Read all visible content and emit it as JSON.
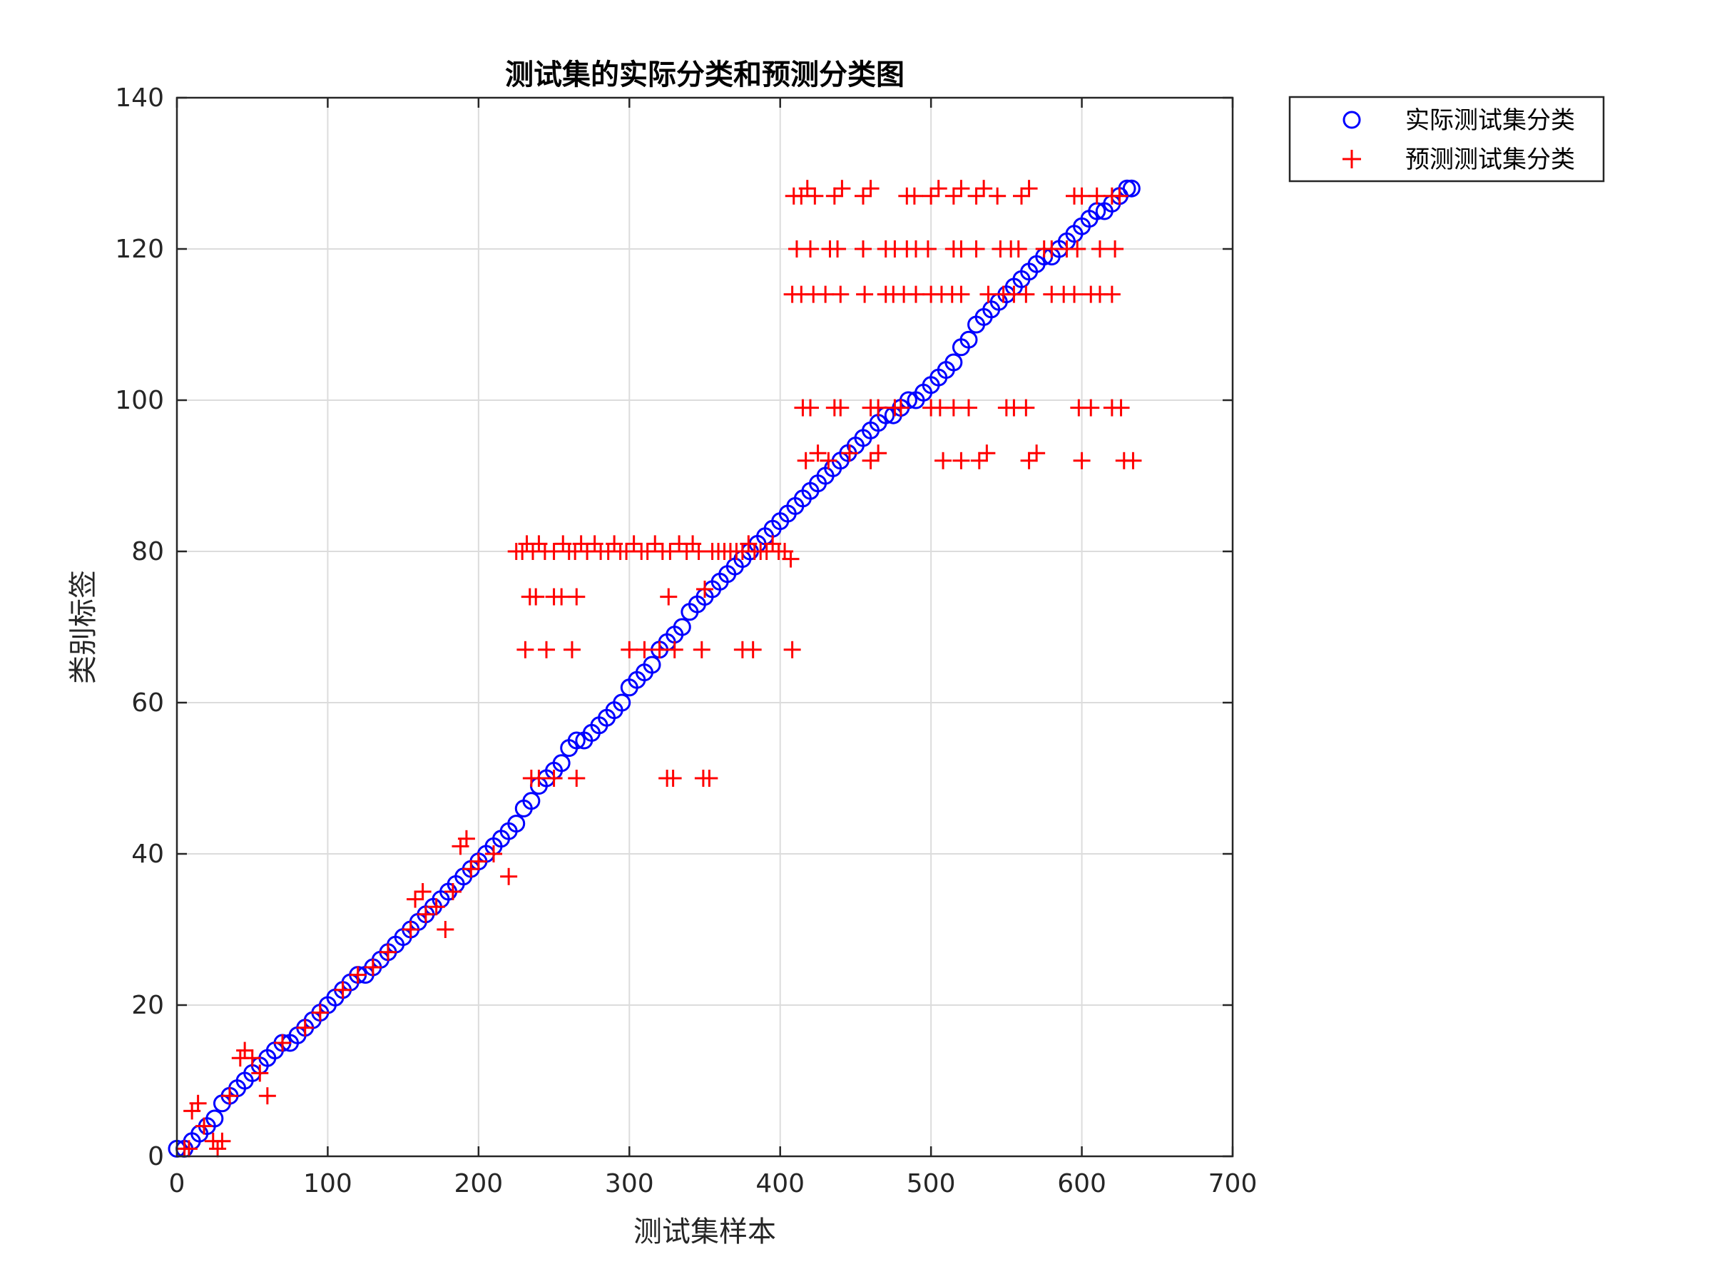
{
  "chart_data": {
    "type": "scatter",
    "title": "测试集的实际分类和预测分类图",
    "xlabel": "测试集样本",
    "ylabel": "类别标签",
    "xlim": [
      0,
      700
    ],
    "ylim": [
      0,
      140
    ],
    "xticks": [
      0,
      100,
      200,
      300,
      400,
      500,
      600,
      700
    ],
    "yticks": [
      0,
      20,
      40,
      60,
      80,
      100,
      120,
      140
    ],
    "grid": true,
    "legend_position": "outside-top-right",
    "series": [
      {
        "name": "实际测试集分类",
        "marker": "circle",
        "color": "#0000ff",
        "points": [
          [
            0,
            1
          ],
          [
            5,
            1
          ],
          [
            10,
            2
          ],
          [
            15,
            3
          ],
          [
            20,
            4
          ],
          [
            25,
            5
          ],
          [
            30,
            7
          ],
          [
            35,
            8
          ],
          [
            40,
            9
          ],
          [
            45,
            10
          ],
          [
            50,
            11
          ],
          [
            55,
            12
          ],
          [
            60,
            13
          ],
          [
            65,
            14
          ],
          [
            70,
            15
          ],
          [
            75,
            15
          ],
          [
            80,
            16
          ],
          [
            85,
            17
          ],
          [
            90,
            18
          ],
          [
            95,
            19
          ],
          [
            100,
            20
          ],
          [
            105,
            21
          ],
          [
            110,
            22
          ],
          [
            115,
            23
          ],
          [
            120,
            24
          ],
          [
            125,
            24
          ],
          [
            130,
            25
          ],
          [
            135,
            26
          ],
          [
            140,
            27
          ],
          [
            145,
            28
          ],
          [
            150,
            29
          ],
          [
            155,
            30
          ],
          [
            160,
            31
          ],
          [
            165,
            32
          ],
          [
            170,
            33
          ],
          [
            175,
            34
          ],
          [
            180,
            35
          ],
          [
            185,
            36
          ],
          [
            190,
            37
          ],
          [
            195,
            38
          ],
          [
            200,
            39
          ],
          [
            205,
            40
          ],
          [
            210,
            41
          ],
          [
            215,
            42
          ],
          [
            220,
            43
          ],
          [
            225,
            44
          ],
          [
            230,
            46
          ],
          [
            235,
            47
          ],
          [
            240,
            49
          ],
          [
            245,
            50
          ],
          [
            250,
            51
          ],
          [
            255,
            52
          ],
          [
            260,
            54
          ],
          [
            265,
            55
          ],
          [
            270,
            55
          ],
          [
            275,
            56
          ],
          [
            280,
            57
          ],
          [
            285,
            58
          ],
          [
            290,
            59
          ],
          [
            295,
            60
          ],
          [
            300,
            62
          ],
          [
            305,
            63
          ],
          [
            310,
            64
          ],
          [
            315,
            65
          ],
          [
            320,
            67
          ],
          [
            325,
            68
          ],
          [
            330,
            69
          ],
          [
            335,
            70
          ],
          [
            340,
            72
          ],
          [
            345,
            73
          ],
          [
            350,
            74
          ],
          [
            355,
            75
          ],
          [
            360,
            76
          ],
          [
            365,
            77
          ],
          [
            370,
            78
          ],
          [
            375,
            79
          ],
          [
            380,
            80
          ],
          [
            385,
            81
          ],
          [
            390,
            82
          ],
          [
            395,
            83
          ],
          [
            400,
            84
          ],
          [
            405,
            85
          ],
          [
            410,
            86
          ],
          [
            415,
            87
          ],
          [
            420,
            88
          ],
          [
            425,
            89
          ],
          [
            430,
            90
          ],
          [
            435,
            91
          ],
          [
            440,
            92
          ],
          [
            445,
            93
          ],
          [
            450,
            94
          ],
          [
            455,
            95
          ],
          [
            460,
            96
          ],
          [
            465,
            97
          ],
          [
            470,
            98
          ],
          [
            475,
            98
          ],
          [
            480,
            99
          ],
          [
            485,
            100
          ],
          [
            490,
            100
          ],
          [
            495,
            101
          ],
          [
            500,
            102
          ],
          [
            505,
            103
          ],
          [
            510,
            104
          ],
          [
            515,
            105
          ],
          [
            520,
            107
          ],
          [
            525,
            108
          ],
          [
            530,
            110
          ],
          [
            535,
            111
          ],
          [
            540,
            112
          ],
          [
            545,
            113
          ],
          [
            550,
            114
          ],
          [
            555,
            115
          ],
          [
            560,
            116
          ],
          [
            565,
            117
          ],
          [
            570,
            118
          ],
          [
            575,
            119
          ],
          [
            580,
            119
          ],
          [
            585,
            120
          ],
          [
            590,
            121
          ],
          [
            595,
            122
          ],
          [
            600,
            123
          ],
          [
            605,
            124
          ],
          [
            610,
            125
          ],
          [
            615,
            125
          ],
          [
            620,
            126
          ],
          [
            625,
            127
          ],
          [
            630,
            128
          ],
          [
            633,
            128
          ]
        ]
      },
      {
        "name": "预测测试集分类",
        "marker": "plus",
        "color": "#ff0000",
        "points": [
          [
            5,
            1
          ],
          [
            8,
            1
          ],
          [
            10,
            6
          ],
          [
            14,
            7
          ],
          [
            18,
            4
          ],
          [
            24,
            2
          ],
          [
            27,
            1
          ],
          [
            30,
            2
          ],
          [
            35,
            8
          ],
          [
            42,
            13
          ],
          [
            45,
            14
          ],
          [
            50,
            13
          ],
          [
            55,
            11
          ],
          [
            60,
            8
          ],
          [
            70,
            15
          ],
          [
            85,
            17
          ],
          [
            95,
            19
          ],
          [
            110,
            22
          ],
          [
            120,
            24
          ],
          [
            130,
            25
          ],
          [
            140,
            27
          ],
          [
            155,
            30
          ],
          [
            158,
            34
          ],
          [
            163,
            35
          ],
          [
            165,
            32
          ],
          [
            172,
            33
          ],
          [
            178,
            30
          ],
          [
            183,
            35
          ],
          [
            188,
            41
          ],
          [
            192,
            42
          ],
          [
            195,
            38
          ],
          [
            200,
            39
          ],
          [
            210,
            40
          ],
          [
            220,
            37
          ],
          [
            225,
            80
          ],
          [
            229,
            80
          ],
          [
            232,
            81
          ],
          [
            236,
            80
          ],
          [
            240,
            81
          ],
          [
            244,
            80
          ],
          [
            250,
            80
          ],
          [
            256,
            81
          ],
          [
            260,
            80
          ],
          [
            264,
            80
          ],
          [
            268,
            81
          ],
          [
            272,
            80
          ],
          [
            277,
            81
          ],
          [
            281,
            80
          ],
          [
            286,
            80
          ],
          [
            290,
            81
          ],
          [
            294,
            80
          ],
          [
            298,
            80
          ],
          [
            303,
            81
          ],
          [
            308,
            80
          ],
          [
            312,
            80
          ],
          [
            317,
            81
          ],
          [
            322,
            80
          ],
          [
            327,
            80
          ],
          [
            333,
            81
          ],
          [
            338,
            80
          ],
          [
            342,
            81
          ],
          [
            346,
            80
          ],
          [
            355,
            80
          ],
          [
            359,
            80
          ],
          [
            363,
            80
          ],
          [
            367,
            80
          ],
          [
            371,
            80
          ],
          [
            375,
            80
          ],
          [
            379,
            81
          ],
          [
            383,
            80
          ],
          [
            387,
            80
          ],
          [
            391,
            80
          ],
          [
            395,
            81
          ],
          [
            399,
            80
          ],
          [
            403,
            80
          ],
          [
            407,
            79
          ],
          [
            234,
            74
          ],
          [
            238,
            74
          ],
          [
            250,
            74
          ],
          [
            255,
            74
          ],
          [
            265,
            74
          ],
          [
            326,
            74
          ],
          [
            350,
            75
          ],
          [
            231,
            67
          ],
          [
            245,
            67
          ],
          [
            262,
            67
          ],
          [
            300,
            67
          ],
          [
            310,
            67
          ],
          [
            320,
            67
          ],
          [
            330,
            67
          ],
          [
            348,
            67
          ],
          [
            375,
            67
          ],
          [
            382,
            67
          ],
          [
            408,
            67
          ],
          [
            235,
            50
          ],
          [
            240,
            50
          ],
          [
            250,
            50
          ],
          [
            265,
            50
          ],
          [
            325,
            50
          ],
          [
            329,
            50
          ],
          [
            349,
            50
          ],
          [
            353,
            50
          ],
          [
            409,
            127
          ],
          [
            414,
            127
          ],
          [
            418,
            128
          ],
          [
            423,
            127
          ],
          [
            436,
            127
          ],
          [
            441,
            128
          ],
          [
            455,
            127
          ],
          [
            460,
            128
          ],
          [
            484,
            127
          ],
          [
            489,
            127
          ],
          [
            500,
            127
          ],
          [
            505,
            128
          ],
          [
            515,
            127
          ],
          [
            520,
            128
          ],
          [
            530,
            127
          ],
          [
            535,
            128
          ],
          [
            544,
            127
          ],
          [
            560,
            127
          ],
          [
            565,
            128
          ],
          [
            595,
            127
          ],
          [
            600,
            127
          ],
          [
            610,
            127
          ],
          [
            620,
            127
          ],
          [
            625,
            127
          ],
          [
            411,
            120
          ],
          [
            420,
            120
          ],
          [
            433,
            120
          ],
          [
            438,
            120
          ],
          [
            455,
            120
          ],
          [
            470,
            120
          ],
          [
            476,
            120
          ],
          [
            484,
            120
          ],
          [
            490,
            120
          ],
          [
            498,
            120
          ],
          [
            515,
            120
          ],
          [
            520,
            120
          ],
          [
            530,
            120
          ],
          [
            546,
            120
          ],
          [
            553,
            120
          ],
          [
            558,
            120
          ],
          [
            575,
            120
          ],
          [
            580,
            120
          ],
          [
            590,
            120
          ],
          [
            597,
            120
          ],
          [
            612,
            120
          ],
          [
            622,
            120
          ],
          [
            408,
            114
          ],
          [
            414,
            114
          ],
          [
            422,
            114
          ],
          [
            430,
            114
          ],
          [
            440,
            114
          ],
          [
            456,
            114
          ],
          [
            470,
            114
          ],
          [
            475,
            114
          ],
          [
            482,
            114
          ],
          [
            490,
            114
          ],
          [
            500,
            114
          ],
          [
            507,
            114
          ],
          [
            514,
            114
          ],
          [
            520,
            114
          ],
          [
            538,
            114
          ],
          [
            548,
            114
          ],
          [
            555,
            114
          ],
          [
            563,
            114
          ],
          [
            580,
            114
          ],
          [
            588,
            114
          ],
          [
            595,
            114
          ],
          [
            606,
            114
          ],
          [
            612,
            114
          ],
          [
            620,
            114
          ],
          [
            415,
            99
          ],
          [
            420,
            99
          ],
          [
            436,
            99
          ],
          [
            440,
            99
          ],
          [
            460,
            99
          ],
          [
            465,
            99
          ],
          [
            476,
            99
          ],
          [
            480,
            99
          ],
          [
            500,
            99
          ],
          [
            506,
            99
          ],
          [
            515,
            99
          ],
          [
            525,
            99
          ],
          [
            550,
            99
          ],
          [
            555,
            99
          ],
          [
            563,
            99
          ],
          [
            598,
            99
          ],
          [
            606,
            99
          ],
          [
            620,
            99
          ],
          [
            626,
            99
          ],
          [
            417,
            92
          ],
          [
            425,
            93
          ],
          [
            432,
            92
          ],
          [
            446,
            93
          ],
          [
            460,
            92
          ],
          [
            465,
            93
          ],
          [
            508,
            92
          ],
          [
            520,
            92
          ],
          [
            532,
            92
          ],
          [
            537,
            93
          ],
          [
            565,
            92
          ],
          [
            570,
            93
          ],
          [
            600,
            92
          ],
          [
            628,
            92
          ],
          [
            634,
            92
          ]
        ]
      }
    ]
  }
}
